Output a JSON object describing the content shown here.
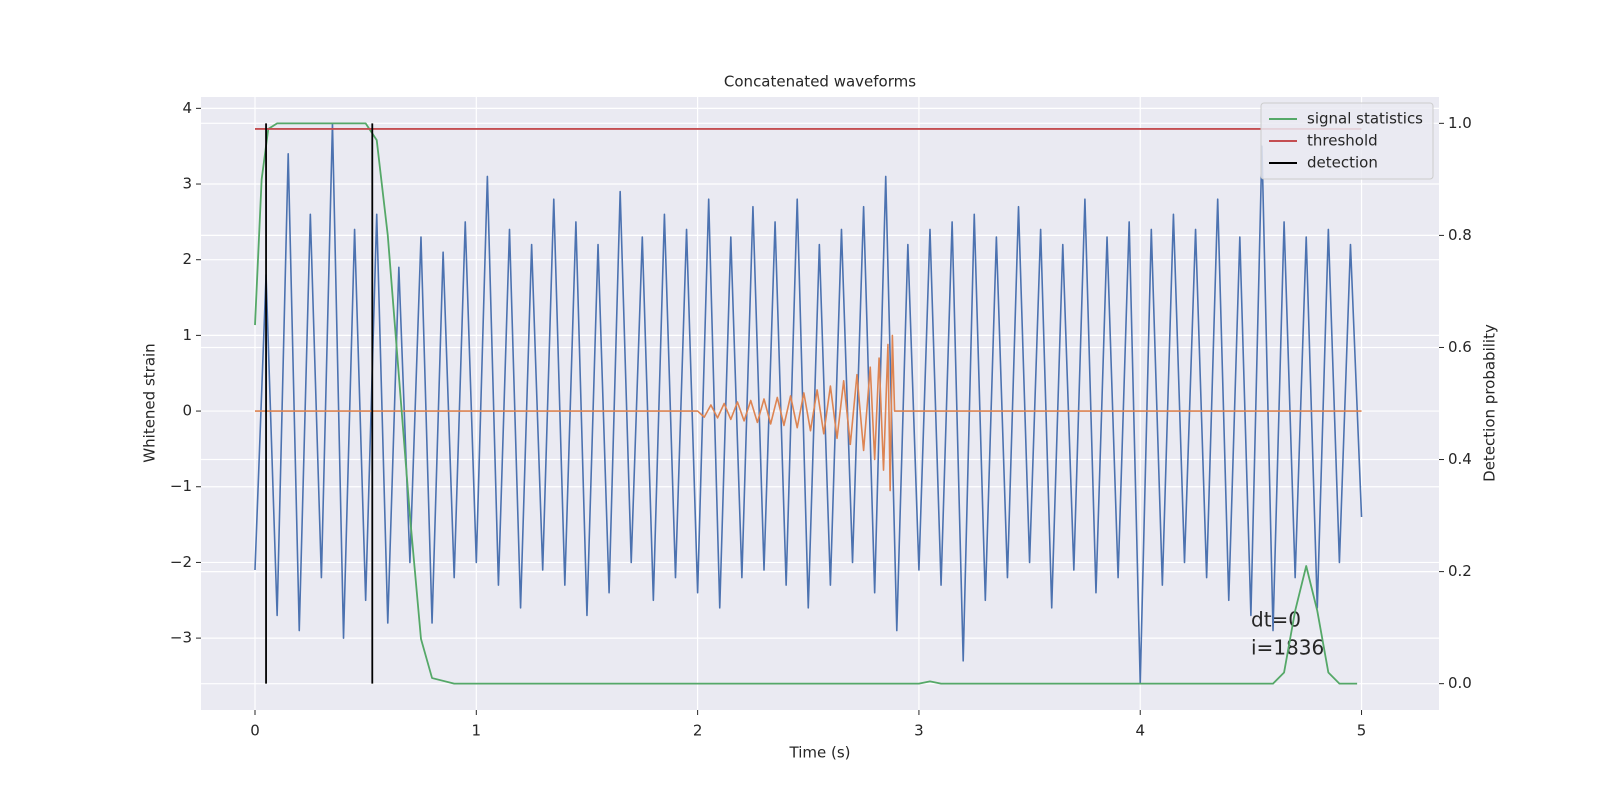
{
  "chart_data": {
    "type": "line",
    "title": "Concatenated waveforms",
    "xlabel": "Time (s)",
    "ylabel": "Whitened strain",
    "y2label": "Detection probability",
    "xlim": [
      -0.244,
      5.35
    ],
    "ylim": [
      -3.95,
      4.15
    ],
    "y2lim": [
      -0.047,
      1.047
    ],
    "xticks": [
      0,
      1,
      2,
      3,
      4,
      5
    ],
    "yticks": [
      {
        "value": -3,
        "label": "−3"
      },
      {
        "value": -2,
        "label": "−2"
      },
      {
        "value": -1,
        "label": "−1"
      },
      0,
      1,
      2,
      3,
      4
    ],
    "y2ticks": [
      {
        "value": 0,
        "label": "0.0"
      },
      {
        "value": 0.2,
        "label": "0.2"
      },
      {
        "value": 0.4,
        "label": "0.4"
      },
      {
        "value": 0.6,
        "label": "0.6"
      },
      {
        "value": 0.8,
        "label": "0.8"
      },
      {
        "value": 1.0,
        "label": "1.0"
      }
    ],
    "grid": true,
    "legend": "upper right",
    "annotations": [
      "dt=0",
      "i=1836"
    ],
    "series": [
      {
        "color": "#4c72b0",
        "x": [
          0,
          0.05,
          0.1,
          0.15,
          0.2,
          0.25,
          0.3,
          0.35,
          0.4,
          0.45,
          0.5,
          0.55,
          0.6,
          0.65,
          0.7,
          0.75,
          0.8,
          0.85,
          0.9,
          0.95,
          1,
          1.05,
          1.1,
          1.15,
          1.2,
          1.25,
          1.3,
          1.35,
          1.4,
          1.45,
          1.5,
          1.55,
          1.6,
          1.65,
          1.7,
          1.75,
          1.8,
          1.85,
          1.9,
          1.95,
          2,
          2.05,
          2.1,
          2.15,
          2.2,
          2.25,
          2.3,
          2.35,
          2.4,
          2.45,
          2.5,
          2.55,
          2.6,
          2.65,
          2.7,
          2.75,
          2.8,
          2.85,
          2.9,
          2.95,
          3,
          3.05,
          3.1,
          3.15,
          3.2,
          3.25,
          3.3,
          3.35,
          3.4,
          3.45,
          3.5,
          3.55,
          3.6,
          3.65,
          3.7,
          3.75,
          3.8,
          3.85,
          3.9,
          3.95,
          4,
          4.05,
          4.1,
          4.15,
          4.2,
          4.25,
          4.3,
          4.35,
          4.4,
          4.45,
          4.5,
          4.55,
          4.6,
          4.65,
          4.7,
          4.75,
          4.8,
          4.85,
          4.9,
          4.95,
          5
        ],
        "values": [
          -2.1,
          1.8,
          -2.7,
          3.4,
          -2.9,
          2.6,
          -2.2,
          3.8,
          -3.0,
          2.4,
          -2.5,
          2.6,
          -2.8,
          1.9,
          -2.0,
          2.3,
          -2.8,
          2.1,
          -2.2,
          2.5,
          -2.0,
          3.1,
          -2.3,
          2.4,
          -2.6,
          2.2,
          -2.1,
          2.8,
          -2.3,
          2.5,
          -2.7,
          2.2,
          -2.4,
          2.9,
          -2.0,
          2.3,
          -2.5,
          2.6,
          -2.2,
          2.4,
          -2.4,
          2.8,
          -2.6,
          2.3,
          -2.2,
          2.7,
          -2.1,
          2.5,
          -2.3,
          2.8,
          -2.6,
          2.2,
          -2.3,
          2.4,
          -2.0,
          2.7,
          -2.4,
          3.1,
          -2.9,
          2.2,
          -2.1,
          2.4,
          -2.3,
          2.5,
          -3.3,
          2.6,
          -2.5,
          2.3,
          -2.2,
          2.7,
          -2.0,
          2.4,
          -2.6,
          2.2,
          -2.1,
          2.8,
          -2.4,
          2.3,
          -2.2,
          2.5,
          -3.6,
          2.4,
          -2.3,
          2.6,
          -2.0,
          2.4,
          -2.2,
          2.8,
          -2.5,
          2.3,
          -2.7,
          3.5,
          -2.9,
          2.5,
          -2.2,
          2.3,
          -2.6,
          2.4,
          -2.0,
          2.2,
          -1.4
        ]
      },
      {
        "color": "#dd8452",
        "x": [
          0,
          2.0,
          2.03,
          2.06,
          2.09,
          2.12,
          2.15,
          2.18,
          2.21,
          2.24,
          2.27,
          2.3,
          2.33,
          2.36,
          2.39,
          2.42,
          2.45,
          2.48,
          2.51,
          2.54,
          2.57,
          2.6,
          2.63,
          2.66,
          2.69,
          2.72,
          2.75,
          2.78,
          2.8,
          2.82,
          2.84,
          2.86,
          2.87,
          2.88,
          2.89,
          5
        ],
        "values": [
          0,
          0,
          -0.08,
          0.08,
          -0.09,
          0.1,
          -0.11,
          0.12,
          -0.13,
          0.14,
          -0.15,
          0.16,
          -0.17,
          0.18,
          -0.19,
          0.2,
          -0.22,
          0.24,
          -0.26,
          0.28,
          -0.3,
          0.33,
          -0.36,
          0.4,
          -0.44,
          0.48,
          -0.52,
          0.58,
          -0.64,
          0.7,
          -0.78,
          0.88,
          -1.05,
          1.0,
          0,
          0
        ]
      },
      {
        "name": "signal statistics",
        "color": "#55a868",
        "axis": "y2",
        "x": [
          0,
          0.03,
          0.06,
          0.1,
          0.5,
          0.55,
          0.6,
          0.65,
          0.7,
          0.75,
          0.8,
          0.9,
          3.0,
          3.05,
          3.1,
          4.6,
          4.65,
          4.7,
          4.75,
          4.8,
          4.85,
          4.9,
          4.98
        ],
        "values": [
          0.64,
          0.9,
          0.99,
          1.0,
          1.0,
          0.97,
          0.8,
          0.55,
          0.3,
          0.08,
          0.01,
          0,
          0,
          0.004,
          0,
          0,
          0.02,
          0.13,
          0.21,
          0.13,
          0.02,
          0,
          0
        ]
      },
      {
        "name": "threshold",
        "color": "#c44e52",
        "axis": "y2",
        "x": [
          0,
          5
        ],
        "values": [
          0.99,
          0.99
        ]
      },
      {
        "name": "detection",
        "color": "#000000",
        "axis": "y2",
        "x": [
          0.05,
          0.05,
          0.05,
          0.53,
          0.53
        ],
        "values": [
          0,
          1.0,
          null,
          0,
          1.0
        ]
      }
    ]
  }
}
